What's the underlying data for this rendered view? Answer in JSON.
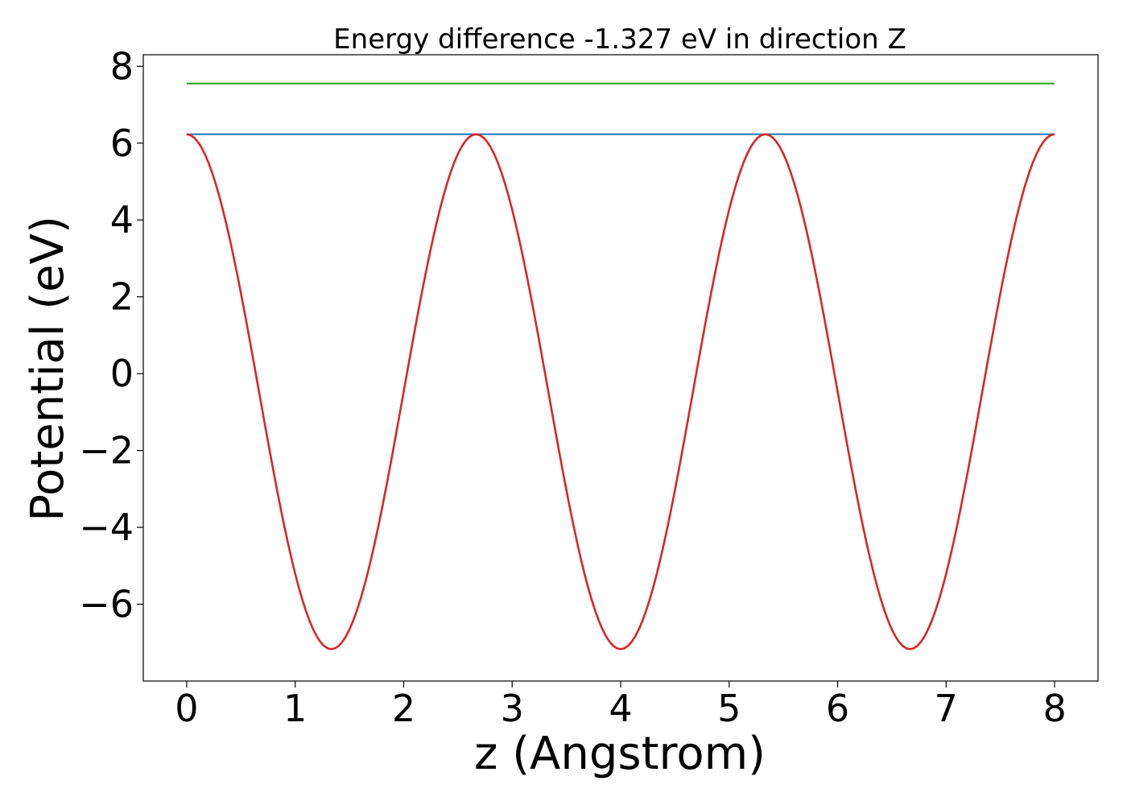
{
  "chart_data": {
    "type": "line",
    "title": "Energy difference -1.327 eV in direction Z",
    "xlabel": "z (Angstrom)",
    "ylabel": "Potential (eV)",
    "xlim": [
      -0.4,
      8.4
    ],
    "ylim": [
      -8.0,
      8.3
    ],
    "x_ticks": [
      0,
      1,
      2,
      3,
      4,
      5,
      6,
      7,
      8
    ],
    "x_tick_labels": [
      "0",
      "1",
      "2",
      "3",
      "4",
      "5",
      "6",
      "7",
      "8"
    ],
    "y_ticks": [
      -6,
      -4,
      -2,
      0,
      2,
      4,
      6,
      8
    ],
    "y_tick_labels": [
      "−6",
      "−4",
      "−2",
      "0",
      "2",
      "4",
      "6",
      "8"
    ],
    "grid": false,
    "legend": "none",
    "series": [
      {
        "color": "#2ca02c",
        "x": [
          0,
          8
        ],
        "y": [
          7.55,
          7.55
        ]
      },
      {
        "color": "#1f77b4",
        "x": [
          0,
          8
        ],
        "y": [
          6.23,
          6.23
        ]
      },
      {
        "color": "#d62728",
        "period": 2.6667,
        "x": [
          0,
          0.3333,
          0.6667,
          1.0,
          1.3333,
          1.6667,
          2.0,
          2.3333,
          2.6667,
          3.0,
          3.3333,
          3.6667,
          4.0,
          4.3333,
          4.6667,
          5.0,
          5.3333,
          5.6667,
          6.0,
          6.3333,
          6.6667,
          7.0,
          7.3333,
          7.6667,
          8.0
        ],
        "y": [
          6.23,
          4.27,
          -0.47,
          -5.21,
          -7.17,
          -5.21,
          -0.47,
          4.27,
          6.23,
          4.27,
          -0.47,
          -5.21,
          -7.17,
          -5.21,
          -0.47,
          4.27,
          6.23,
          4.27,
          -0.47,
          -5.21,
          -7.17,
          -5.21,
          -0.47,
          4.27,
          6.23
        ]
      }
    ]
  }
}
